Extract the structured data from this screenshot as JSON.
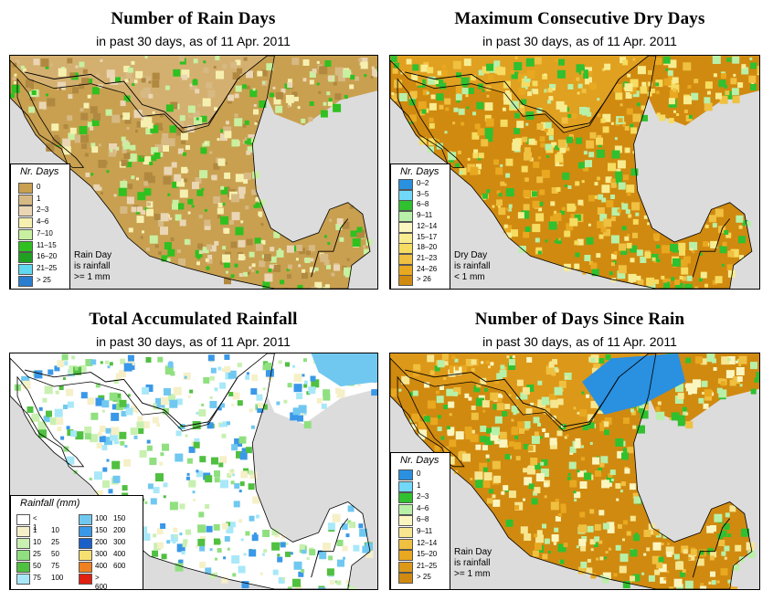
{
  "colors": {
    "land_dry": "#c8a050",
    "land_sand": "#e0c898",
    "water": "#dcdcdc",
    "orange_dark": "#d08a10",
    "orange": "#e0a020",
    "white": "#ffffff",
    "blue": "#2a90e0"
  },
  "panels": [
    {
      "title": "Number of Rain Days",
      "subtitle": "in past 30 days, as of  11 Apr. 2011",
      "legend_title": "Nr. Days",
      "legend": [
        {
          "label": "0",
          "color": "#c8a050"
        },
        {
          "label": "1",
          "color": "#d7b983"
        },
        {
          "label": "2–3",
          "color": "#ead6b4"
        },
        {
          "label": "4–6",
          "color": "#f6f0b0"
        },
        {
          "label": "7–10",
          "color": "#c8f0a0"
        },
        {
          "label": "11–15",
          "color": "#30c020"
        },
        {
          "label": "16–20",
          "color": "#20a020"
        },
        {
          "label": "21–25",
          "color": "#60d8f0"
        },
        {
          "label": "> 25",
          "color": "#2a7ed0"
        }
      ],
      "note": [
        "Rain Day",
        "is rainfall",
        ">= 1 mm"
      ]
    },
    {
      "title": "Maximum Consecutive Dry Days",
      "subtitle": "in past 30 days, as of  11 Apr. 2011",
      "legend_title": "Nr. Days",
      "legend": [
        {
          "label": "0–2",
          "color": "#2a90e0"
        },
        {
          "label": "3–5",
          "color": "#70d8f8"
        },
        {
          "label": "6–8",
          "color": "#30c030"
        },
        {
          "label": "9–11",
          "color": "#b8f0a8"
        },
        {
          "label": "12–14",
          "color": "#fbf6c0"
        },
        {
          "label": "15–17",
          "color": "#f8ec90"
        },
        {
          "label": "18–20",
          "color": "#f6dc60"
        },
        {
          "label": "21–23",
          "color": "#f0c040"
        },
        {
          "label": "24–26",
          "color": "#e8a820"
        },
        {
          "label": "> 26",
          "color": "#d08a10"
        }
      ],
      "note": [
        "Dry Day",
        "is rainfall",
        "< 1 mm"
      ]
    },
    {
      "title": "Total Accumulated Rainfall",
      "subtitle": "in past 30 days, as of  11 Apr. 2011",
      "legend_title": "Rainfall (mm)",
      "legend_left": [
        {
          "lo": "< 1",
          "hi": "",
          "color": "#ffffff"
        },
        {
          "lo": "1",
          "hi": "10",
          "color": "#f6f0c8"
        },
        {
          "lo": "10",
          "hi": "25",
          "color": "#c8f0b0"
        },
        {
          "lo": "25",
          "hi": "50",
          "color": "#90e080"
        },
        {
          "lo": "50",
          "hi": "75",
          "color": "#50c040"
        },
        {
          "lo": "75",
          "hi": "100",
          "color": "#a8e8f8"
        }
      ],
      "legend_right": [
        {
          "lo": "100",
          "hi": "150",
          "color": "#70c8f0"
        },
        {
          "lo": "150",
          "hi": "200",
          "color": "#3a98e8"
        },
        {
          "lo": "200",
          "hi": "300",
          "color": "#1a60c8"
        },
        {
          "lo": "300",
          "hi": "400",
          "color": "#f8e070"
        },
        {
          "lo": "400",
          "hi": "600",
          "color": "#f08020"
        },
        {
          "lo": "> 600",
          "hi": "",
          "color": "#e02010"
        }
      ]
    },
    {
      "title": "Number of Days Since Rain",
      "subtitle": "in past 30 days, as of  11 Apr. 2011",
      "legend_title": "Nr. Days",
      "legend": [
        {
          "label": "0",
          "color": "#2a90e0"
        },
        {
          "label": "1",
          "color": "#70d8f8"
        },
        {
          "label": "2–3",
          "color": "#30c030"
        },
        {
          "label": "4–6",
          "color": "#b8f0a8"
        },
        {
          "label": "6–8",
          "color": "#fbf6c0"
        },
        {
          "label": "9–11",
          "color": "#f6e690"
        },
        {
          "label": "12–14",
          "color": "#f0c040"
        },
        {
          "label": "15–20",
          "color": "#e8a820"
        },
        {
          "label": "21–25",
          "color": "#dc9818"
        },
        {
          "label": "> 25",
          "color": "#d08a10"
        }
      ],
      "note": [
        "Rain Day",
        "is rainfall",
        ">= 1 mm"
      ]
    }
  ]
}
